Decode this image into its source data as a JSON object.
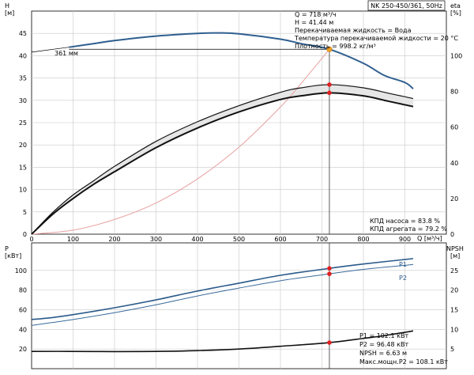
{
  "pump_model": "NK 250-450/361, 50Hz",
  "info": {
    "lines": [
      "Q = 718 м³/ч",
      "H = 41.44 м",
      "Перекачиваемая жидкость = Вода",
      "Температура перекачиваемой жидкости = 20 °C",
      "Плотность = 998.2 кг/м³"
    ]
  },
  "efficiency_info": {
    "lines": [
      "КПД насоса = 83.8 %",
      "КПД агрегата = 79.2 %"
    ]
  },
  "power_info": {
    "lines": [
      "P1 = 102.1 кВт",
      "P2 = 96.48 кВт",
      "NPSH = 6.63 м",
      "Макс.мощн.P2 = 108.1 кВт"
    ]
  },
  "colors": {
    "head": "#2f5f8f",
    "efficiency": "#111111",
    "system": "#e8a0a0",
    "p1": "#2a5a8a",
    "p2": "#3a6a9a",
    "npsh": "#111111",
    "duty_marker": "#e02020",
    "duty_top_marker": "#f0a020",
    "grid": "#c8c8c8"
  },
  "chart_data": [
    {
      "type": "line",
      "panel": "upper",
      "x_range": [
        0,
        1000
      ],
      "x_ticks": [
        0,
        100,
        200,
        300,
        400,
        500,
        600,
        700,
        800,
        900
      ],
      "xlabel": "Q [м³/ч]",
      "left_axis": {
        "unit": "H",
        "unit_sub": "[м]",
        "range": [
          0,
          50
        ],
        "ticks": [
          0,
          5,
          10,
          15,
          20,
          25,
          30,
          35,
          40,
          45
        ]
      },
      "right_axis": {
        "unit": "eta",
        "unit_sub": "[%]",
        "range": [
          0,
          125
        ],
        "ticks": [
          0,
          20,
          40,
          60,
          80,
          100
        ]
      },
      "impeller_label": "361 мм",
      "duty_point": {
        "q": 718,
        "h": 41.44,
        "eta_pump": 83.8,
        "eta_unit": 79.2
      },
      "series": [
        {
          "name": "head",
          "axis": "left",
          "points": [
            [
              90,
              41.9
            ],
            [
              150,
              42.7
            ],
            [
              200,
              43.4
            ],
            [
              300,
              44.4
            ],
            [
              400,
              45.0
            ],
            [
              450,
              45.1
            ],
            [
              500,
              44.9
            ],
            [
              600,
              43.7
            ],
            [
              650,
              42.7
            ],
            [
              718,
              41.44
            ],
            [
              800,
              38.3
            ],
            [
              850,
              35.6
            ],
            [
              900,
              34.0
            ],
            [
              920,
              32.6
            ]
          ]
        },
        {
          "name": "eta_pump",
          "axis": "right",
          "points": [
            [
              0,
              0
            ],
            [
              50,
              12
            ],
            [
              100,
              22
            ],
            [
              150,
              30
            ],
            [
              200,
              38
            ],
            [
              300,
              52
            ],
            [
              400,
              63
            ],
            [
              500,
              72
            ],
            [
              600,
              79.5
            ],
            [
              650,
              82
            ],
            [
              718,
              83.8
            ],
            [
              800,
              82
            ],
            [
              860,
              79
            ],
            [
              920,
              76
            ]
          ]
        },
        {
          "name": "eta_unit",
          "axis": "right",
          "points": [
            [
              0,
              0
            ],
            [
              50,
              11
            ],
            [
              100,
              20
            ],
            [
              150,
              28
            ],
            [
              200,
              35
            ],
            [
              300,
              48.5
            ],
            [
              400,
              59.5
            ],
            [
              500,
              68.5
            ],
            [
              600,
              75.5
            ],
            [
              650,
              77.5
            ],
            [
              718,
              79.2
            ],
            [
              800,
              77.5
            ],
            [
              860,
              74.5
            ],
            [
              920,
              71.5
            ]
          ]
        },
        {
          "name": "system",
          "axis": "left",
          "points": [
            [
              0,
              0
            ],
            [
              100,
              0.9
            ],
            [
              200,
              3.3
            ],
            [
              300,
              7.0
            ],
            [
              400,
              12.4
            ],
            [
              500,
              19.5
            ],
            [
              600,
              28.5
            ],
            [
              650,
              33.8
            ],
            [
              718,
              41.44
            ]
          ]
        }
      ]
    },
    {
      "type": "line",
      "panel": "lower",
      "x_range": [
        0,
        1000
      ],
      "left_axis": {
        "unit": "P",
        "unit_sub": "[кВт]",
        "range": [
          0,
          128
        ],
        "ticks": [
          20,
          40,
          60,
          80,
          100
        ]
      },
      "right_axis": {
        "unit": "NPSH",
        "unit_sub": "[м]",
        "range": [
          0,
          32
        ],
        "ticks": [
          5,
          10,
          15,
          20,
          25
        ]
      },
      "duty_point": {
        "q": 718,
        "p1": 102.1,
        "p2": 96.48,
        "npsh": 6.63
      },
      "series": [
        {
          "name": "P1",
          "axis": "left",
          "points": [
            [
              0,
              50
            ],
            [
              50,
              52
            ],
            [
              100,
              55
            ],
            [
              200,
              62
            ],
            [
              300,
              70
            ],
            [
              400,
              79
            ],
            [
              500,
              87
            ],
            [
              600,
              95
            ],
            [
              718,
              102.1
            ],
            [
              800,
              106.5
            ],
            [
              920,
              112
            ]
          ]
        },
        {
          "name": "P2",
          "axis": "left",
          "points": [
            [
              0,
              44
            ],
            [
              50,
              47
            ],
            [
              100,
              50
            ],
            [
              200,
              57
            ],
            [
              300,
              65
            ],
            [
              400,
              74
            ],
            [
              500,
              82
            ],
            [
              600,
              89.5
            ],
            [
              718,
              96.48
            ],
            [
              800,
              101
            ],
            [
              920,
              106
            ]
          ]
        },
        {
          "name": "NPSH",
          "axis": "right",
          "points": [
            [
              0,
              4.4
            ],
            [
              90,
              4.4
            ],
            [
              200,
              4.35
            ],
            [
              300,
              4.4
            ],
            [
              400,
              4.6
            ],
            [
              500,
              5.0
            ],
            [
              600,
              5.7
            ],
            [
              718,
              6.63
            ],
            [
              800,
              7.7
            ],
            [
              850,
              8.4
            ],
            [
              920,
              9.6
            ]
          ]
        }
      ]
    }
  ]
}
